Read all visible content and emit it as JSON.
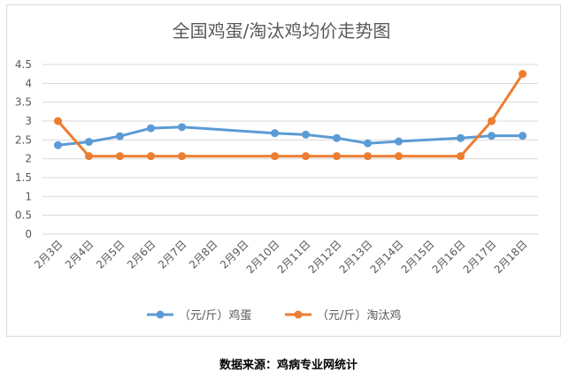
{
  "chart_data": {
    "type": "line",
    "title": "全国鸡蛋/淘汰鸡均价走势图",
    "categories": [
      "2月3日",
      "2月4日",
      "2月5日",
      "2月6日",
      "2月7日",
      "2月8日",
      "2月9日",
      "2月10日",
      "2月11日",
      "2月12日",
      "2月13日",
      "2月14日",
      "2月15日",
      "2月16日",
      "2月17日",
      "2月18日"
    ],
    "y_ticks": [
      "0",
      "0.5",
      "1",
      "1.5",
      "2",
      "2.5",
      "3",
      "3.5",
      "4",
      "4.5"
    ],
    "ylim": [
      0,
      4.5
    ],
    "grid": true,
    "legend_position": "bottom",
    "series": [
      {
        "name": "（元/斤）鸡蛋",
        "color": "#5b9bd5",
        "points": [
          {
            "x": "2月3日",
            "y": 2.36
          },
          {
            "x": "2月4日",
            "y": 2.45
          },
          {
            "x": "2月5日",
            "y": 2.6
          },
          {
            "x": "2月6日",
            "y": 2.81
          },
          {
            "x": "2月7日",
            "y": 2.84
          },
          {
            "x": "2月10日",
            "y": 2.68
          },
          {
            "x": "2月11日",
            "y": 2.64
          },
          {
            "x": "2月12日",
            "y": 2.55
          },
          {
            "x": "2月13日",
            "y": 2.41
          },
          {
            "x": "2月14日",
            "y": 2.46
          },
          {
            "x": "2月16日",
            "y": 2.55
          },
          {
            "x": "2月17日",
            "y": 2.61
          },
          {
            "x": "2月18日",
            "y": 2.61
          }
        ]
      },
      {
        "name": "（元/斤）淘汰鸡",
        "color": "#ed7d31",
        "points": [
          {
            "x": "2月3日",
            "y": 3.0
          },
          {
            "x": "2月4日",
            "y": 2.07
          },
          {
            "x": "2月5日",
            "y": 2.07
          },
          {
            "x": "2月6日",
            "y": 2.07
          },
          {
            "x": "2月7日",
            "y": 2.07
          },
          {
            "x": "2月10日",
            "y": 2.07
          },
          {
            "x": "2月11日",
            "y": 2.07
          },
          {
            "x": "2月12日",
            "y": 2.07
          },
          {
            "x": "2月13日",
            "y": 2.07
          },
          {
            "x": "2月14日",
            "y": 2.07
          },
          {
            "x": "2月16日",
            "y": 2.07
          },
          {
            "x": "2月17日",
            "y": 3.0
          },
          {
            "x": "2月18日",
            "y": 4.25
          }
        ]
      }
    ]
  },
  "source_note": "数据来源：鸡病专业网统计"
}
